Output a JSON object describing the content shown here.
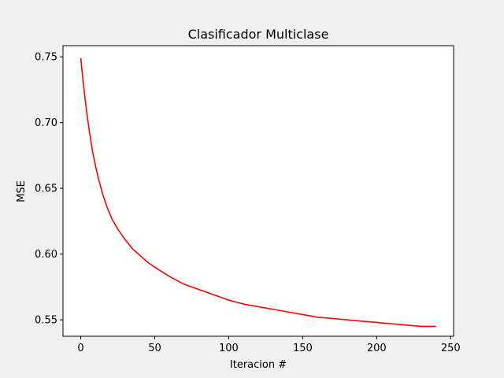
{
  "chart_data": {
    "type": "line",
    "title": "Clasificador Multiclase",
    "xlabel": "Iteracion #",
    "ylabel": "MSE",
    "xlim": [
      -12,
      252
    ],
    "ylim": [
      0.5375,
      0.7585
    ],
    "xticks": [
      0,
      50,
      100,
      150,
      200,
      250
    ],
    "yticks": [
      0.55,
      0.6,
      0.65,
      0.7,
      0.75
    ],
    "xtick_labels": [
      "0",
      "50",
      "100",
      "150",
      "200",
      "250"
    ],
    "ytick_labels": [
      "0.55",
      "0.60",
      "0.65",
      "0.70",
      "0.75"
    ],
    "grid": false,
    "series": [
      {
        "color": "#ff0000",
        "x": [
          0,
          2,
          4,
          6,
          8,
          10,
          12,
          15,
          18,
          21,
          25,
          30,
          35,
          40,
          45,
          50,
          60,
          70,
          80,
          90,
          100,
          110,
          120,
          130,
          140,
          150,
          160,
          170,
          180,
          190,
          200,
          210,
          220,
          230,
          240
        ],
        "values": [
          0.749,
          0.727,
          0.708,
          0.692,
          0.678,
          0.667,
          0.657,
          0.645,
          0.635,
          0.627,
          0.619,
          0.611,
          0.604,
          0.599,
          0.594,
          0.59,
          0.583,
          0.577,
          0.573,
          0.569,
          0.565,
          0.562,
          0.56,
          0.558,
          0.556,
          0.554,
          0.552,
          0.551,
          0.55,
          0.549,
          0.548,
          0.547,
          0.546,
          0.545,
          0.545
        ]
      }
    ]
  }
}
